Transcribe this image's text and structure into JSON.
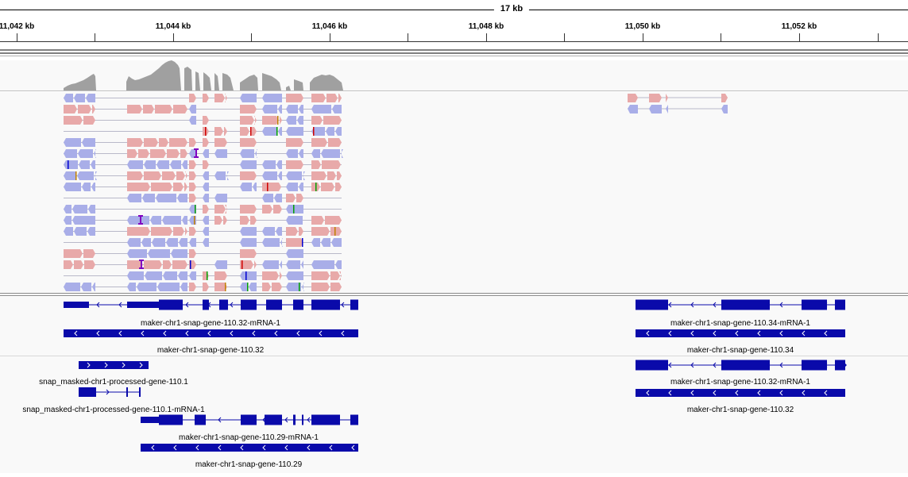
{
  "ruler": {
    "span_label": "17 kb",
    "ticks": [
      "11,042 kb",
      "11,044 kb",
      "11,046 kb",
      "11,048 kb",
      "11,050 kb",
      "11,052 kb"
    ]
  },
  "features": {
    "labels": [
      "maker-chr1-snap-gene-110.32-mRNA-1",
      "maker-chr1-snap-gene-110.32",
      "maker-chr1-snap-gene-110.34-mRNA-1",
      "maker-chr1-snap-gene-110.34",
      "snap_masked-chr1-processed-gene-110.1",
      "snap_masked-chr1-processed-gene-110.1-mRNA-1",
      "maker-chr1-snap-gene-110.29-mRNA-1",
      "maker-chr1-snap-gene-110.29",
      "maker-chr1-snap-gene-110.32-mRNA-1",
      "maker-chr1-snap-gene-110.32"
    ]
  },
  "colors": {
    "forward_read": "#e8a9a9",
    "reverse_read": "#a9aee8",
    "coverage": "#a0a0a0",
    "feature": "#0a0aaa",
    "insertion": "#8000c0"
  }
}
